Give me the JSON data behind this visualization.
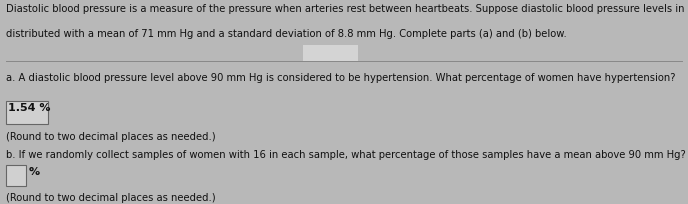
{
  "bg_color": "#b8b8b8",
  "header_text_line1": "Diastolic blood pressure is a measure of the pressure when arteries rest between heartbeats. Suppose diastolic blood pressure levels in women are norma",
  "header_text_line2": "distributed with a mean of 71 mm Hg and a standard deviation of 8.8 mm Hg. Complete parts (a) and (b) below.",
  "header_fontsize": 7.2,
  "part_a_label": "a. A diastolic blood pressure level above 90 mm Hg is considered to be hypertension. What percentage of women have hypertension?",
  "part_a_answer": "1.54 %",
  "part_a_answer_fontsize": 8.0,
  "part_a_round": "(Round to two decimal places as needed.)",
  "part_b_label": "b. If we randomly collect samples of women with 16 in each sample, what percentage of those samples have a mean above 90 mm Hg?",
  "part_b_round": "(Round to two decimal places as needed.)",
  "small_fontsize": 7.2,
  "text_color": "#111111",
  "box_color": "#d0d0d0",
  "box_border_color": "#666666",
  "divider_color": "#888888",
  "arrow_color": "#d4d4d4"
}
